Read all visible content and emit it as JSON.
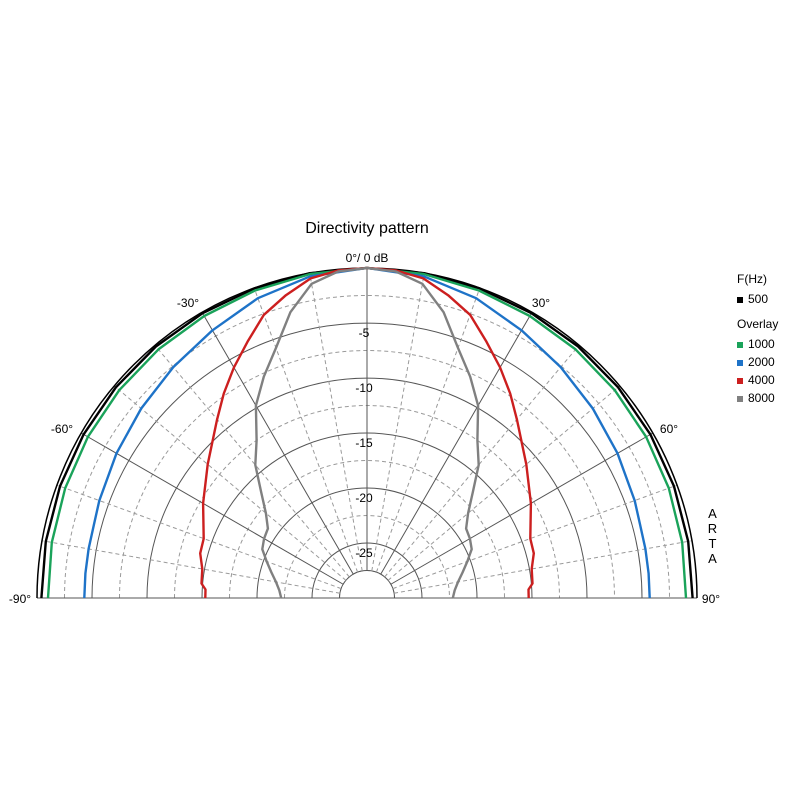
{
  "chart_data": {
    "type": "polar",
    "title": "Directivity pattern",
    "top_label": "0°/ 0 dB",
    "angle_labels": [
      {
        "angle": -90,
        "text": "-90°"
      },
      {
        "angle": -60,
        "text": "-60°"
      },
      {
        "angle": -30,
        "text": "-30°"
      },
      {
        "angle": 30,
        "text": "30°"
      },
      {
        "angle": 60,
        "text": "60°"
      },
      {
        "angle": 90,
        "text": "90°"
      }
    ],
    "angle_range": [
      -90,
      90
    ],
    "radial_range_db": [
      -30,
      0
    ],
    "radial_ticks": [
      -5,
      -10,
      -15,
      -20,
      -25
    ],
    "radial_tick_labels": [
      "-5",
      "-10",
      "-15",
      "-20",
      "-25"
    ],
    "minor_radial_step_db": 2.5,
    "angle_grid_step_deg": 10,
    "vertical_text": "ARTA",
    "legend": {
      "placement": "right",
      "title": "F(Hz)",
      "overlay_label": "Overlay"
    },
    "series": [
      {
        "name": "500",
        "color": "#000000",
        "angles": [
          -90,
          -80,
          -70,
          -60,
          -50,
          -40,
          -30,
          -20,
          -10,
          0,
          10,
          20,
          30,
          40,
          50,
          60,
          70,
          80,
          90
        ],
        "values": [
          -0.4,
          -0.35,
          -0.3,
          -0.25,
          -0.2,
          -0.15,
          -0.1,
          -0.05,
          -0.02,
          0,
          -0.02,
          -0.05,
          -0.1,
          -0.15,
          -0.2,
          -0.25,
          -0.3,
          -0.35,
          -0.4
        ]
      },
      {
        "name": "1000",
        "color": "#1aa35a",
        "angles": [
          -90,
          -80,
          -70,
          -60,
          -50,
          -40,
          -30,
          -20,
          -10,
          0,
          10,
          20,
          30,
          40,
          50,
          60,
          70,
          80,
          90
        ],
        "values": [
          -1.0,
          -0.9,
          -0.8,
          -0.7,
          -0.6,
          -0.5,
          -0.4,
          -0.25,
          -0.1,
          0,
          -0.1,
          -0.25,
          -0.4,
          -0.5,
          -0.6,
          -0.7,
          -0.8,
          -0.9,
          -1.0
        ]
      },
      {
        "name": "2000",
        "color": "#1e73c8",
        "angles": [
          -90,
          -85,
          -80,
          -75,
          -70,
          -60,
          -50,
          -40,
          -30,
          -20,
          -10,
          0,
          10,
          20,
          30,
          40,
          50,
          60,
          70,
          75,
          80,
          85,
          90
        ],
        "values": [
          -4.3,
          -4.3,
          -4.3,
          -4.3,
          -4.1,
          -3.7,
          -3.2,
          -2.6,
          -1.9,
          -1.0,
          -0.3,
          0,
          -0.3,
          -1.0,
          -1.9,
          -2.6,
          -3.2,
          -3.7,
          -4.1,
          -4.3,
          -4.3,
          -4.3,
          -4.3
        ]
      },
      {
        "name": "4000",
        "color": "#cc1f1f",
        "angles": [
          -90,
          -87,
          -85,
          -80,
          -75,
          -70,
          -60,
          -50,
          -40,
          -35,
          -30,
          -25,
          -20,
          -15,
          -10,
          -5,
          0,
          5,
          10,
          15,
          20,
          25,
          30,
          35,
          40,
          50,
          60,
          70,
          75,
          80,
          85,
          87,
          90
        ],
        "values": [
          -15.3,
          -15.3,
          -14.9,
          -14.8,
          -14.3,
          -14.2,
          -12.8,
          -11.1,
          -8.8,
          -7.3,
          -5.8,
          -4.3,
          -2.6,
          -1.5,
          -0.5,
          -0.1,
          0,
          -0.1,
          -0.5,
          -1.5,
          -2.6,
          -4.3,
          -5.8,
          -7.3,
          -8.8,
          -11.1,
          -12.8,
          -14.2,
          -14.3,
          -14.8,
          -14.9,
          -15.3,
          -15.3
        ]
      },
      {
        "name": "8000",
        "color": "#808080",
        "angles": [
          -90,
          -85,
          -80,
          -75,
          -70,
          -65,
          -60,
          -55,
          -50,
          -45,
          -40,
          -35,
          -30,
          -25,
          -20,
          -15,
          -10,
          -5,
          0,
          5,
          10,
          15,
          20,
          25,
          30,
          35,
          40,
          45,
          50,
          55,
          60,
          65,
          70,
          75,
          80,
          85,
          90
        ],
        "values": [
          -22.2,
          -22.0,
          -21.6,
          -21.0,
          -20.3,
          -19.5,
          -19.2,
          -19.0,
          -18.0,
          -16.4,
          -14.2,
          -12.5,
          -9.8,
          -7.8,
          -5.8,
          -3.1,
          -1.0,
          -0.2,
          0,
          -0.2,
          -1.0,
          -3.1,
          -5.8,
          -7.8,
          -9.8,
          -12.5,
          -14.2,
          -16.4,
          -18.0,
          -19.0,
          -19.2,
          -19.5,
          -20.3,
          -21.0,
          -21.6,
          -22.0,
          -22.2
        ]
      }
    ]
  }
}
